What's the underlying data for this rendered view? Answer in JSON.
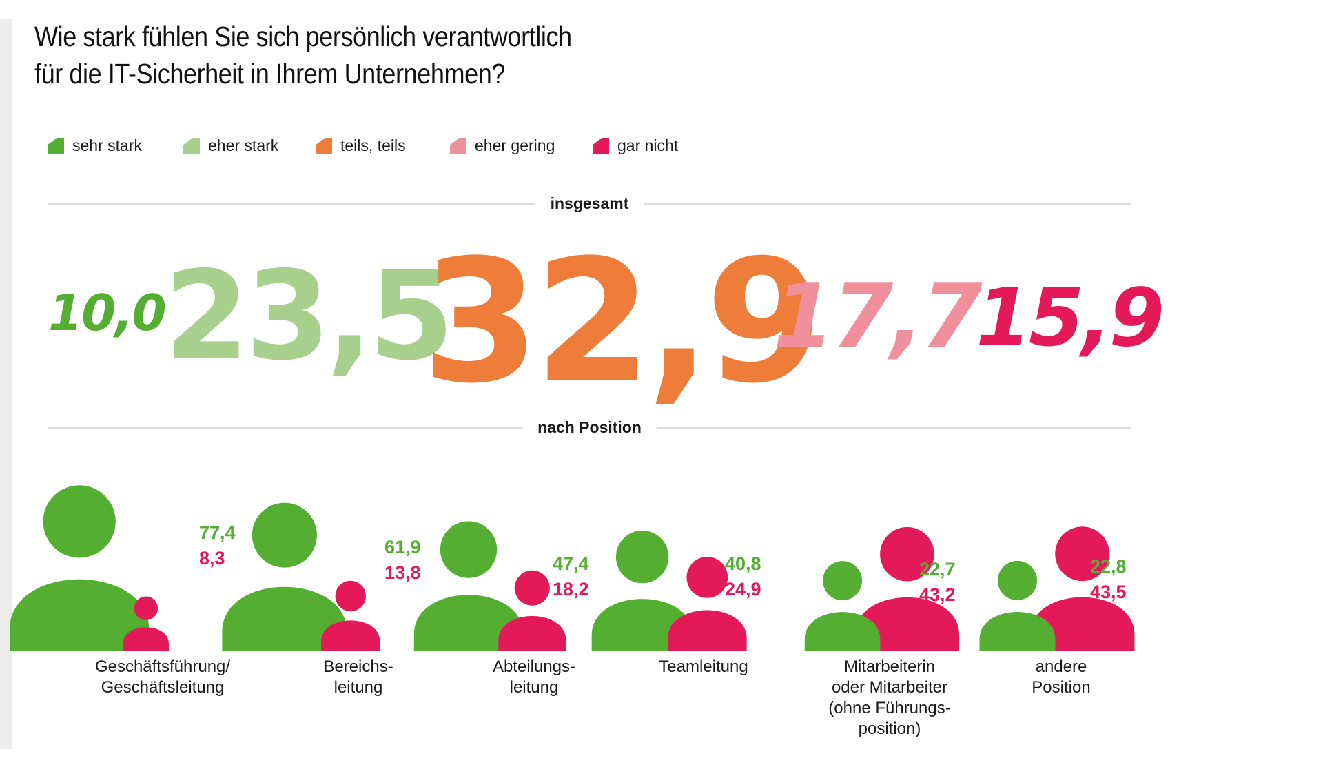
{
  "title": {
    "line1": "Wie stark fühlen Sie sich persönlich verantwortlich",
    "line2": "für die IT-Sicherheit in Ihrem Unternehmen?"
  },
  "colors": {
    "sehr_stark": "#53ae32",
    "eher_stark": "#a8d08d",
    "teils_teils": "#ee7d3a",
    "eher_gering": "#f0909c",
    "gar_nicht": "#e4195a"
  },
  "legend": [
    {
      "label": "sehr stark",
      "color": "#53ae32"
    },
    {
      "label": "eher stark",
      "color": "#a8d08d"
    },
    {
      "label": "teils, teils",
      "color": "#ee7d3a"
    },
    {
      "label": "eher gering",
      "color": "#f0909c"
    },
    {
      "label": "gar nicht",
      "color": "#e4195a"
    }
  ],
  "sections": {
    "overall": "insgesamt",
    "by_position": "nach Position"
  },
  "chart_data": [
    {
      "type": "table",
      "title": "insgesamt",
      "categories": [
        "sehr stark",
        "eher stark",
        "teils, teils",
        "eher gering",
        "gar nicht"
      ],
      "values": [
        10.0,
        23.5,
        32.9,
        17.7,
        15.9
      ],
      "labels": [
        "10,0",
        "23,5",
        "32,9",
        "17,7",
        "15,9"
      ],
      "unit": "%",
      "note": "number size proportional to value"
    },
    {
      "type": "scatter",
      "title": "nach Position",
      "encoding": "person icons sized by share; green = sehr stark, magenta = gar nicht",
      "categories": [
        "Geschäftsführung/ Geschäftsleitung",
        "Bereichsleitung",
        "Abteilungsleitung",
        "Teamleitung",
        "Mitarbeiterin oder Mitarbeiter (ohne Führungsposition)",
        "andere Position"
      ],
      "series": [
        {
          "name": "sehr stark",
          "color": "#53ae32",
          "values": [
            77.4,
            61.9,
            47.4,
            40.8,
            22.7,
            22.8
          ],
          "labels": [
            "77,4",
            "61,9",
            "47,4",
            "40,8",
            "22,7",
            "22,8"
          ]
        },
        {
          "name": "gar nicht",
          "color": "#e4195a",
          "values": [
            8.3,
            13.8,
            18.2,
            24.9,
            43.2,
            43.5
          ],
          "labels": [
            "8,3",
            "13,8",
            "18,2",
            "24,9",
            "43,2",
            "43,5"
          ]
        }
      ]
    }
  ],
  "positions": [
    {
      "label_lines": [
        "Geschäftsführung/",
        "Geschäftsleitung"
      ],
      "green": "77,4",
      "pink": "8,3"
    },
    {
      "label_lines": [
        "Bereichs-",
        "leitung"
      ],
      "green": "61,9",
      "pink": "13,8"
    },
    {
      "label_lines": [
        "Abteilungs-",
        "leitung"
      ],
      "green": "47,4",
      "pink": "18,2"
    },
    {
      "label_lines": [
        "Teamleitung"
      ],
      "green": "40,8",
      "pink": "24,9"
    },
    {
      "label_lines": [
        "Mitarbeiterin",
        "oder Mitarbeiter",
        "(ohne Führungs-",
        "position)"
      ],
      "green": "22,7",
      "pink": "43,2"
    },
    {
      "label_lines": [
        "andere",
        "Position"
      ],
      "green": "22,8",
      "pink": "43,5"
    }
  ]
}
